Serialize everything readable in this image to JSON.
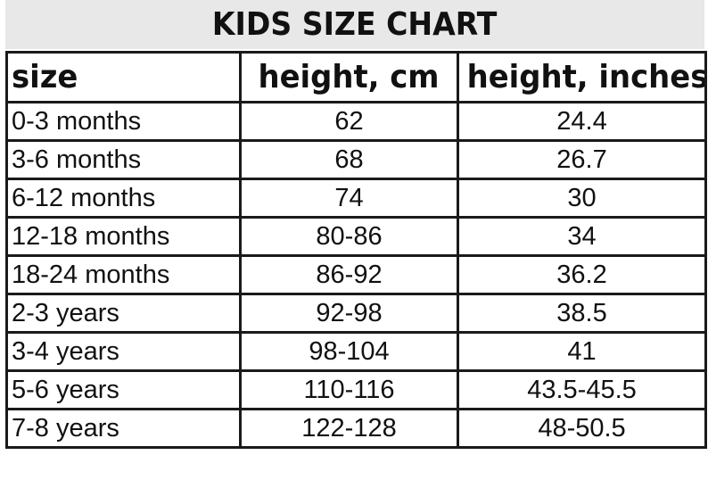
{
  "title": "KIDS SIZE CHART",
  "headers": {
    "size": "size",
    "height_cm": "height, cm",
    "height_inches": "height, inches"
  },
  "rows": [
    {
      "size": "0-3 months",
      "cm": "62",
      "inches": "24.4"
    },
    {
      "size": "3-6 months",
      "cm": "68",
      "inches": "26.7"
    },
    {
      "size": "6-12 months",
      "cm": "74",
      "inches": "30"
    },
    {
      "size": "12-18 months",
      "cm": "80-86",
      "inches": "34"
    },
    {
      "size": "18-24 months",
      "cm": "86-92",
      "inches": "36.2"
    },
    {
      "size": "2-3 years",
      "cm": "92-98",
      "inches": "38.5"
    },
    {
      "size": "3-4 years",
      "cm": "98-104",
      "inches": "41"
    },
    {
      "size": "5-6 years",
      "cm": "110-116",
      "inches": "43.5-45.5"
    },
    {
      "size": "7-8 years",
      "cm": "122-128",
      "inches": "48-50.5"
    }
  ],
  "colors": {
    "title_background": "#e8e8e8",
    "grid_lines": "#1a1a1a",
    "text": "#111111"
  }
}
